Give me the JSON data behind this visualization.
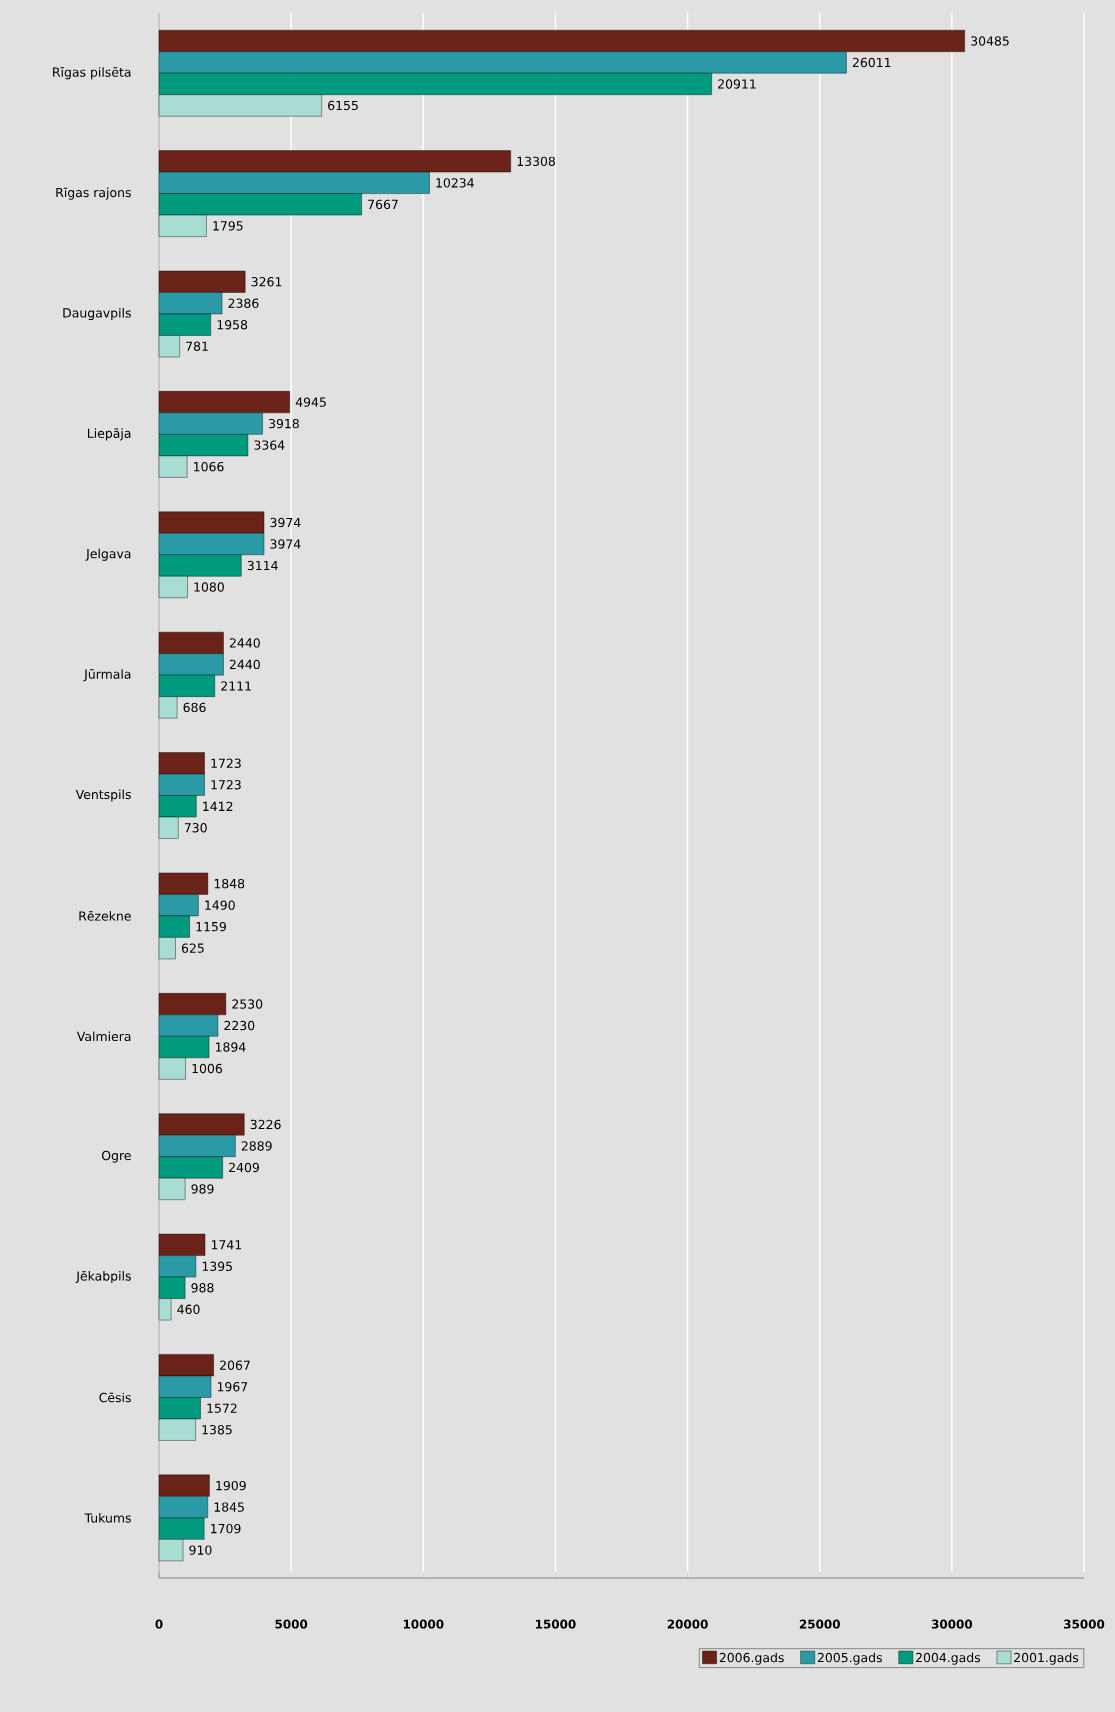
{
  "chart_data": {
    "type": "bar",
    "orientation": "horizontal",
    "categories": [
      "Rīgas pilsēta",
      "Rīgas rajons",
      "Daugavpils",
      "Liepāja",
      "Jelgava",
      "Jūrmala",
      "Ventspils",
      "Rēzekne",
      "Valmiera",
      "Ogre",
      "Jēkabpils",
      "Cēsis",
      "Tukums"
    ],
    "series": [
      {
        "name": "2006.gads",
        "color": "#6b2219",
        "values": [
          30485,
          13308,
          3261,
          4945,
          3974,
          2440,
          1723,
          1848,
          2530,
          3226,
          1741,
          2067,
          1909
        ]
      },
      {
        "name": "2005.gads",
        "color": "#2a9ba6",
        "values": [
          26011,
          10234,
          2386,
          3918,
          3974,
          2440,
          1723,
          1490,
          2230,
          2889,
          1395,
          1967,
          1845
        ]
      },
      {
        "name": "2004.gads",
        "color": "#009a7f",
        "values": [
          20911,
          7667,
          1958,
          3364,
          3114,
          2111,
          1412,
          1159,
          1894,
          2409,
          988,
          1572,
          1709
        ]
      },
      {
        "name": "2001.gads",
        "color": "#a9ddd3",
        "values": [
          6155,
          1795,
          781,
          1066,
          1080,
          686,
          730,
          625,
          1006,
          989,
          460,
          1385,
          910
        ]
      }
    ],
    "xlim": [
      0,
      35000
    ],
    "xticks": [
      0,
      5000,
      10000,
      15000,
      20000,
      25000,
      30000,
      35000
    ],
    "grid": "x",
    "legend": "bottom right",
    "data_labels": true
  }
}
